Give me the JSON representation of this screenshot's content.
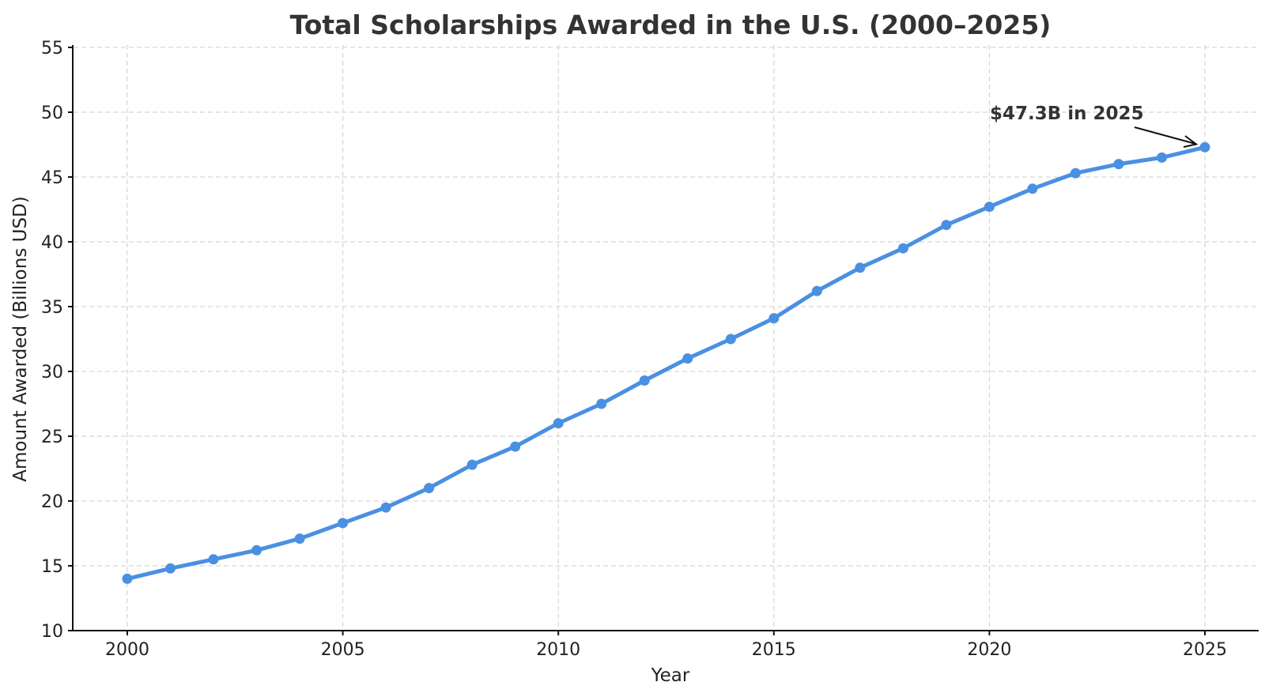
{
  "chart_data": {
    "type": "line",
    "title": "Total Scholarships Awarded in the U.S. (2000–2025)",
    "xlabel": "Year",
    "ylabel": "Amount Awarded (Billions USD)",
    "x": [
      2000,
      2001,
      2002,
      2003,
      2004,
      2005,
      2006,
      2007,
      2008,
      2009,
      2010,
      2011,
      2012,
      2013,
      2014,
      2015,
      2016,
      2017,
      2018,
      2019,
      2020,
      2021,
      2022,
      2023,
      2024,
      2025
    ],
    "series": [
      {
        "name": "Total Scholarships Awarded",
        "values": [
          14.0,
          14.8,
          15.5,
          16.2,
          17.1,
          18.3,
          19.5,
          21.0,
          22.8,
          24.2,
          26.0,
          27.5,
          29.3,
          31.0,
          32.5,
          34.1,
          36.2,
          38.0,
          39.5,
          41.3,
          42.7,
          44.1,
          45.3,
          46.0,
          46.5,
          47.3
        ],
        "color": "#4a90e2",
        "marker": "circle"
      }
    ],
    "xticks": [
      "2000",
      "2005",
      "2010",
      "2015",
      "2020",
      "2025"
    ],
    "yticks": [
      "10",
      "15",
      "20",
      "25",
      "30",
      "35",
      "40",
      "45",
      "50",
      "55"
    ],
    "xlim": [
      1998.7,
      2026.3
    ],
    "ylim": [
      10,
      55
    ],
    "grid": true,
    "grid_style": "dashed",
    "legend": null,
    "annotations": [
      {
        "text": "$47.3B in 2025",
        "x": 2025,
        "y": 47.3,
        "arrow": true
      }
    ]
  },
  "colors": {
    "line": "#4a90e2",
    "title": "#333333",
    "grid": "#d6d6d6",
    "axis": "#111111"
  }
}
